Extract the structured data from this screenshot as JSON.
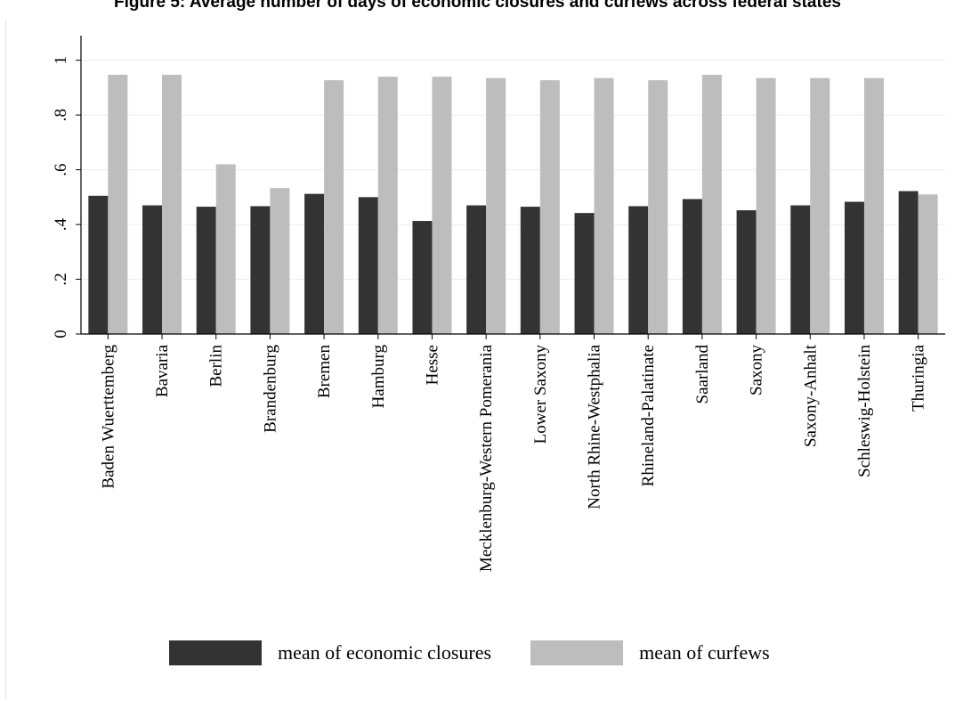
{
  "title": "Figure 5: Average number of days of economic closures and curfews across federal states",
  "chart_data": {
    "type": "bar",
    "categories": [
      "Baden Wuerttemberg",
      "Bavaria",
      "Berlin",
      "Brandenburg",
      "Bremen",
      "Hamburg",
      "Hesse",
      "Mecklenburg-Western Pomerania",
      "Lower Saxony",
      "North Rhine-Westphalia",
      "Rhineland-Palatinate",
      "Saarland",
      "Saxony",
      "Saxony-Anhalt",
      "Schleswig-Holstein",
      "Thuringia"
    ],
    "series": [
      {
        "name": "mean of economic closures",
        "color": "#333333",
        "values": [
          0.505,
          0.47,
          0.465,
          0.467,
          0.512,
          0.5,
          0.413,
          0.47,
          0.465,
          0.442,
          0.467,
          0.493,
          0.452,
          0.47,
          0.483,
          0.522
        ]
      },
      {
        "name": "mean of curfews",
        "color": "#bdbdbd",
        "values": [
          0.947,
          0.947,
          0.62,
          0.533,
          0.927,
          0.94,
          0.94,
          0.935,
          0.927,
          0.935,
          0.927,
          0.947,
          0.935,
          0.935,
          0.935,
          0.51
        ]
      }
    ],
    "yticks": [
      {
        "value": 0,
        "label": "0"
      },
      {
        "value": 0.2,
        "label": ".2"
      },
      {
        "value": 0.4,
        "label": ".4"
      },
      {
        "value": 0.6,
        "label": ".6"
      },
      {
        "value": 0.8,
        "label": ".8"
      },
      {
        "value": 1,
        "label": "1"
      }
    ],
    "ylim": [
      0,
      1.0
    ],
    "grid": true,
    "legend_position": "bottom"
  }
}
